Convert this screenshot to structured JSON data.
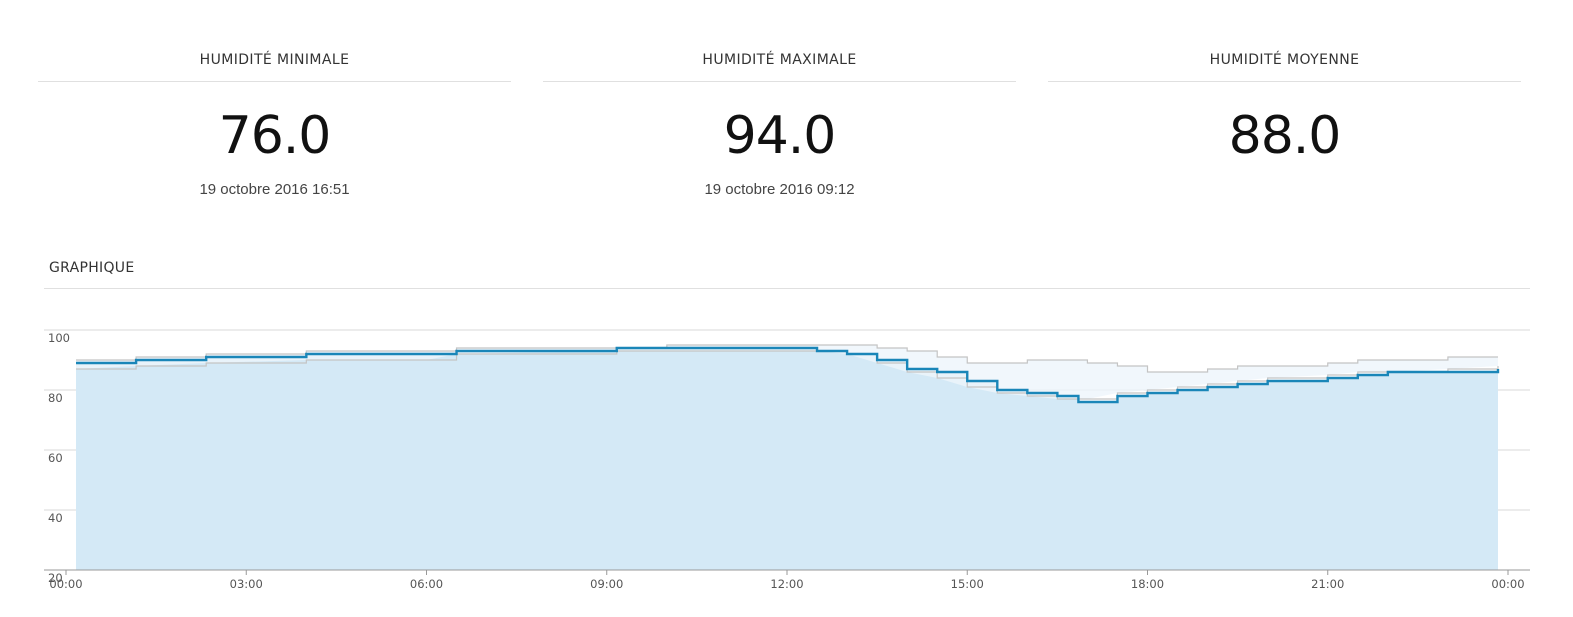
{
  "stats": [
    {
      "title": "HUMIDITÉ MINIMALE",
      "value": "76.0",
      "date": "19 octobre 2016 16:51"
    },
    {
      "title": "HUMIDITÉ MAXIMALE",
      "value": "94.0",
      "date": "19 octobre 2016 09:12"
    },
    {
      "title": "HUMIDITÉ MOYENNE",
      "value": "88.0",
      "date": ""
    }
  ],
  "section": {
    "title": "GRAPHIQUE"
  },
  "colors": {
    "line": "#1a86b8",
    "fill": "#d4e9f6",
    "range": "#eef5fb",
    "envelope": "#c4c4c4",
    "grid": "#d8d8d8"
  },
  "chart_data": {
    "type": "line",
    "title": "",
    "xlabel": "",
    "ylabel": "",
    "ylim": [
      20,
      100
    ],
    "xlim": [
      "00:00",
      "24:00"
    ],
    "y_ticks": [
      20,
      40,
      60,
      80,
      100
    ],
    "y_tick_labels": [
      "20",
      "40",
      "60",
      "80",
      "100"
    ],
    "x_tick_labels": [
      "00:00",
      "03:00",
      "06:00",
      "09:00",
      "12:00",
      "15:00",
      "18:00",
      "21:00",
      "00:00"
    ],
    "grid": true,
    "series": [
      {
        "x": [
          "00:10",
          "01:10",
          "02:20",
          "04:00",
          "06:00",
          "06:30",
          "09:10",
          "10:00",
          "12:30",
          "13:00",
          "13:30",
          "14:00",
          "14:30",
          "15:00",
          "15:30",
          "16:00",
          "16:30",
          "16:51",
          "17:30",
          "18:00",
          "18:30",
          "19:00",
          "19:30",
          "20:00",
          "21:00",
          "21:30",
          "22:00",
          "23:00",
          "23:50"
        ],
        "y": [
          89,
          90,
          91,
          92,
          92,
          93,
          94,
          94,
          93,
          92,
          90,
          87,
          86,
          83,
          80,
          79,
          78,
          76,
          78,
          79,
          80,
          81,
          82,
          83,
          84,
          85,
          86,
          86,
          87
        ]
      },
      {
        "x": [
          "00:10",
          "01:10",
          "02:20",
          "04:00",
          "06:00",
          "06:30",
          "09:10",
          "10:00",
          "12:30",
          "13:00",
          "13:30",
          "14:00",
          "14:30",
          "15:00",
          "15:30",
          "16:00",
          "16:30",
          "17:00",
          "17:30",
          "18:00",
          "18:30",
          "19:00",
          "19:30",
          "20:00",
          "21:00",
          "21:30",
          "22:00",
          "23:00",
          "23:50"
        ],
        "y": [
          90,
          91,
          92,
          93,
          93,
          94,
          94,
          95,
          95,
          95,
          94,
          93,
          91,
          89,
          89,
          90,
          90,
          89,
          88,
          86,
          86,
          87,
          88,
          88,
          89,
          90,
          90,
          91,
          91
        ]
      },
      {
        "x": [
          "00:10",
          "01:10",
          "02:20",
          "04:00",
          "06:00",
          "06:30",
          "09:10",
          "10:00",
          "12:30",
          "13:00",
          "13:30",
          "14:00",
          "14:30",
          "15:00",
          "15:30",
          "16:00",
          "16:30",
          "17:00",
          "17:30",
          "18:00",
          "18:30",
          "19:00",
          "19:30",
          "20:00",
          "21:00",
          "21:30",
          "22:00",
          "23:00",
          "23:50"
        ],
        "y": [
          87,
          88,
          89,
          90,
          90,
          92,
          93,
          93,
          93,
          92,
          89,
          86,
          84,
          81,
          79,
          78,
          77,
          77,
          79,
          80,
          81,
          82,
          83,
          84,
          85,
          86,
          86,
          87,
          88
        ]
      }
    ]
  }
}
